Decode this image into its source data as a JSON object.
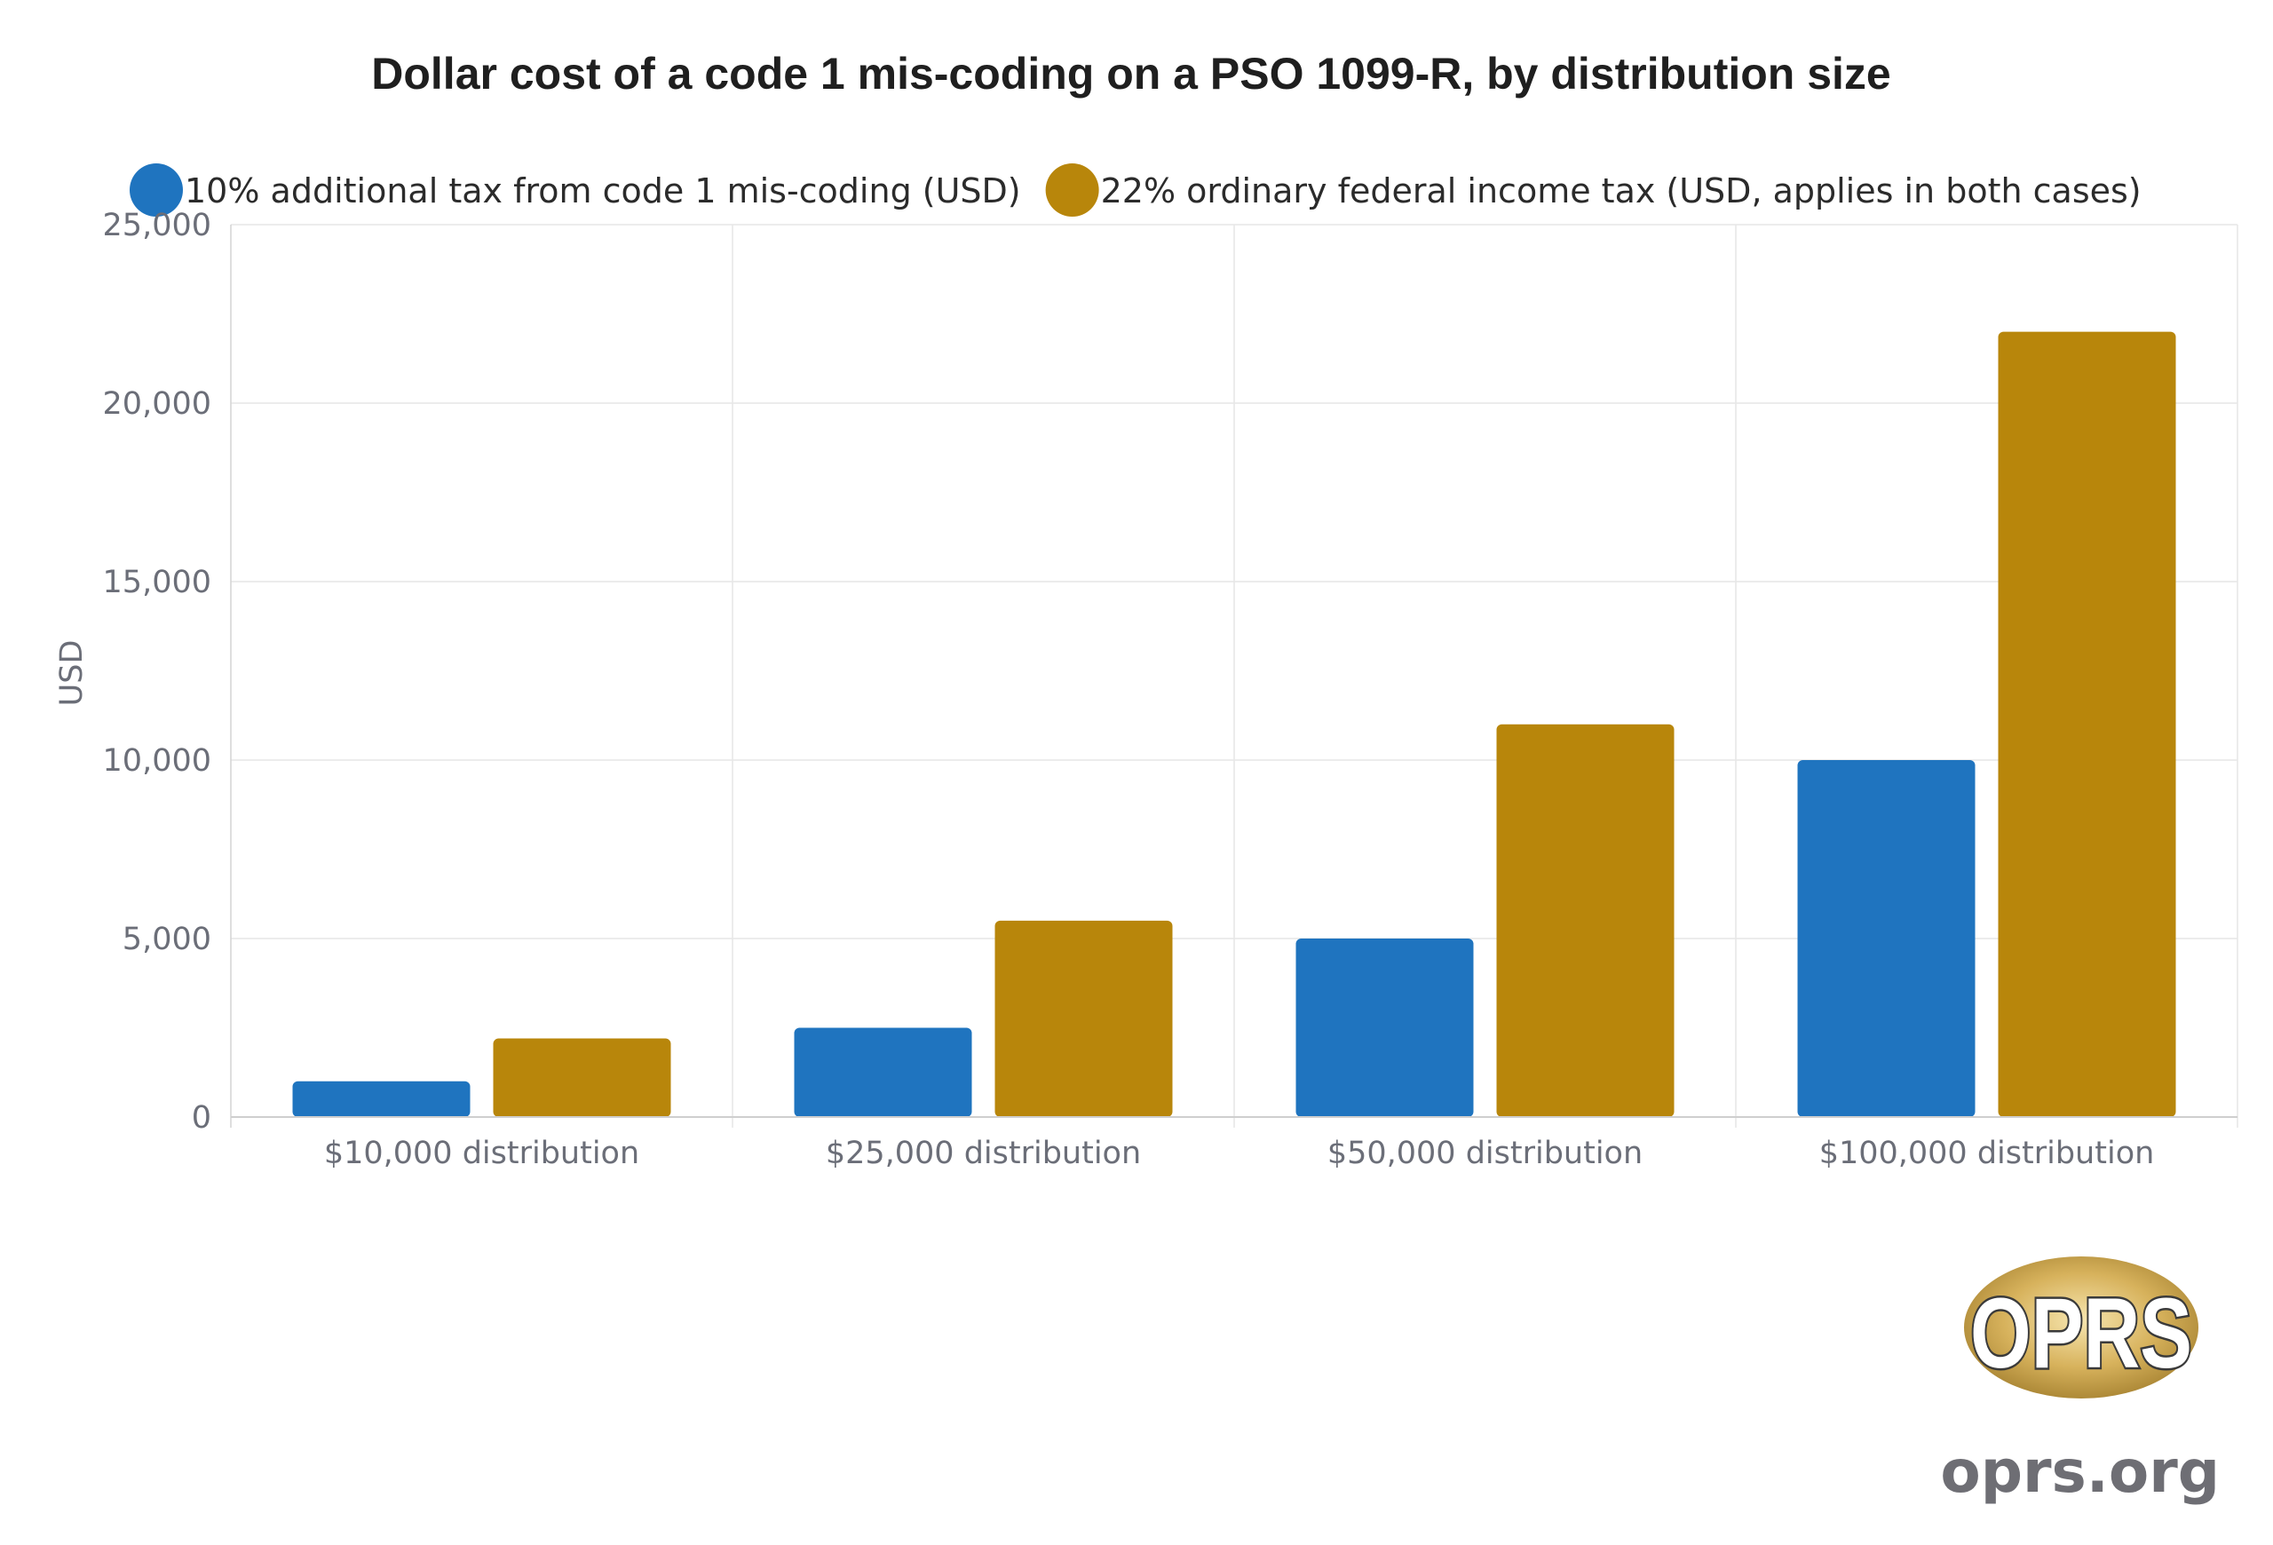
{
  "chart_data": {
    "type": "bar",
    "title": "Dollar cost of a code 1 mis-coding on a PSO 1099-R, by distribution size",
    "xlabel": "",
    "ylabel": "USD",
    "categories": [
      "$10,000 distribution",
      "$25,000 distribution",
      "$50,000 distribution",
      "$100,000 distribution"
    ],
    "series": [
      {
        "name": "10% additional tax from code 1 mis-coding (USD)",
        "color": "#1f74bf",
        "values": [
          1000,
          2500,
          5000,
          10000
        ]
      },
      {
        "name": "22% ordinary federal income tax (USD, applies in both cases)",
        "color": "#b8860b",
        "values": [
          2200,
          5500,
          11000,
          22000
        ]
      }
    ],
    "ylim": [
      0,
      25000
    ],
    "yticks": [
      0,
      5000,
      10000,
      15000,
      20000,
      25000
    ],
    "ytick_labels": [
      "0",
      "5,000",
      "10,000",
      "15,000",
      "20,000",
      "25,000"
    ],
    "grid": true,
    "legend_position": "top-left"
  },
  "branding": {
    "logo_text": "OPRS",
    "site": "oprs.org",
    "logo_badge_color": "#c8a040"
  }
}
